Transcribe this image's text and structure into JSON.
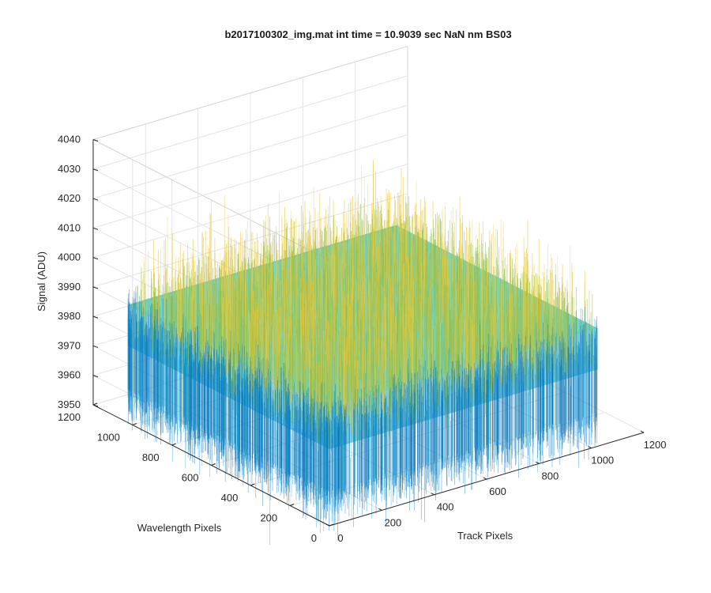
{
  "chart_data": {
    "type": "surface",
    "title": "b2017100302_img.mat int time = 10.9039 sec  NaN nm BS03",
    "xlabel": "Track Pixels",
    "ylabel": "Wavelength Pixels",
    "zlabel": "Signal (ADU)",
    "xlim": [
      0,
      1200
    ],
    "ylim": [
      0,
      1200
    ],
    "zlim": [
      3950,
      4040
    ],
    "xticks": [
      "0",
      "200",
      "400",
      "600",
      "800",
      "1000",
      "1200"
    ],
    "yticks": [
      "0",
      "200",
      "400",
      "600",
      "800",
      "1000",
      "1200"
    ],
    "zticks": [
      "3950",
      "3960",
      "3970",
      "3980",
      "3990",
      "4000",
      "4010",
      "4020",
      "4030",
      "4040"
    ],
    "data_extent": {
      "x": [
        0,
        1024
      ],
      "y": [
        0,
        1024
      ]
    },
    "signal_summary": {
      "mean": 3984,
      "typical_min": 3962,
      "typical_max": 4012,
      "peak_max": 4030
    },
    "colormap": "parula",
    "colors": {
      "low": "#0072bd",
      "mid_low": "#1ca8c8",
      "mid": "#3dbfa0",
      "mid_high": "#8cc15a",
      "high": "#e6c83a"
    },
    "grid": true,
    "box": true,
    "view": "3d-isometric"
  }
}
